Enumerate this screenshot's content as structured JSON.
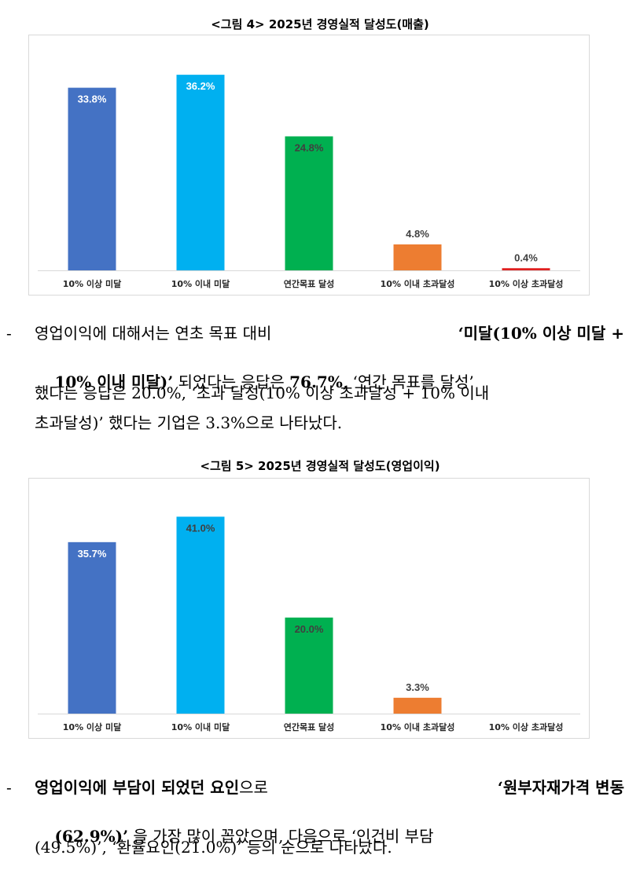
{
  "figures": [
    {
      "title": "<그림 4> 2025년 경영실적 달성도(매출)",
      "chart_data": {
        "type": "bar",
        "title": "<그림 4> 2025년 경영실적 달성도(매출)",
        "categories": [
          "10% 이상 미달",
          "10% 이내 미달",
          "연간목표 달성",
          "10% 이내 초과달성",
          "10% 이상 초과달성"
        ],
        "values": [
          33.8,
          36.2,
          24.8,
          4.8,
          0.4
        ],
        "data_labels": [
          "33.8%",
          "36.2%",
          "24.8%",
          "4.8%",
          "0.4%"
        ],
        "colors": [
          "#4472c4",
          "#00b0f0",
          "#00b050",
          "#ed7d31",
          "#e02020"
        ],
        "label_colors": [
          "#ffffff",
          "#ffffff",
          "#404040",
          "#404040",
          "#404040"
        ],
        "xlabel": "",
        "ylabel": "",
        "ylim": [
          0,
          40
        ],
        "grid": false,
        "legend": "none"
      }
    },
    {
      "title": "<그림 5> 2025년 경영실적 달성도(영업이익)",
      "chart_data": {
        "type": "bar",
        "title": "<그림 5> 2025년 경영실적 달성도(영업이익)",
        "categories": [
          "10% 이상 미달",
          "10% 이내 미달",
          "연간목표 달성",
          "10% 이내 초과달성",
          "10% 이상 초과달성"
        ],
        "values": [
          35.7,
          41.0,
          20.0,
          3.3,
          0
        ],
        "data_labels": [
          "35.7%",
          "41.0%",
          "20.0%",
          "3.3%",
          ""
        ],
        "colors": [
          "#4472c4",
          "#00b0f0",
          "#00b050",
          "#ed7d31",
          "#e02020"
        ],
        "label_colors": [
          "#ffffff",
          "#404040",
          "#404040",
          "#404040",
          "#404040"
        ],
        "xlabel": "",
        "ylabel": "",
        "ylim": [
          0,
          45
        ],
        "grid": false,
        "legend": "none"
      }
    }
  ],
  "paragraph1": {
    "l1_a": "영업이익에 대해서는 연초 목표 대비",
    "l1_b": "‘미달(10% 이상 미달 +",
    "l2_a": "10% 이내 미달)’",
    "l2_b": "되었다는 응답은",
    "l2_c": "76.7%",
    "l2_d": ", ‘연간 목표를 달성’",
    "l3": "했다는 응답은 20.0%, ‘초과 달성(10% 이상 초과달성 + 10% 이내",
    "l4": "초과달성)’ 했다는 기업은 3.3%으로 나타났다."
  },
  "paragraph2": {
    "l1_a": "영업이익에 부담이 되었던 요인",
    "l1_b": "으로",
    "l1_c": "‘원부자재가격 변동",
    "l2_a": "(62.9%)’",
    "l2_b": "을 가장 많이 꼽았으며, 다음으로 ‘인건비 부담",
    "l3": "(49.5%)’, ‘환율요인(21.0%)’ 등의 순으로 나타났다."
  },
  "dash": "-"
}
